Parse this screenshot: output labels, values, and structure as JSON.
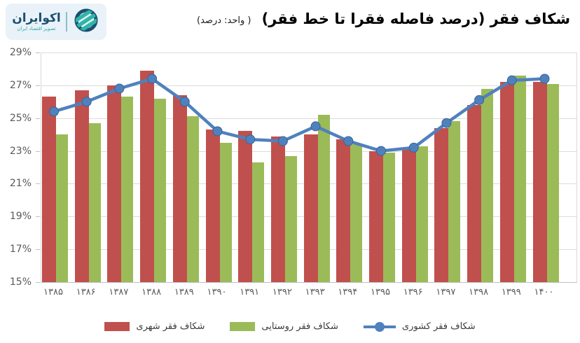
{
  "logo": {
    "brand": "اکوایران",
    "tagline": "تصویر اقتصاد ایران",
    "colors": {
      "navy": "#1C4F70",
      "teal": "#2FB5A9",
      "background": "#E9F2F8"
    }
  },
  "header": {
    "title": "شکاف فقر (درصد فاصله فقرا تا خط فقر)",
    "unit_note": "( واحد: درصد)"
  },
  "chart_data": {
    "type": "bar",
    "subtype": "grouped bars with overlaid line",
    "title": "شکاف فقر (درصد فاصله فقرا تا خط فقر)",
    "unit_label": "( واحد: درصد)",
    "categories": [
      "۱۳۸۵",
      "۱۳۸۶",
      "۱۳۸۷",
      "۱۳۸۸",
      "۱۳۸۹",
      "۱۳۹۰",
      "۱۳۹۱",
      "۱۳۹۲",
      "۱۳۹۳",
      "۱۳۹۴",
      "۱۳۹۵",
      "۱۳۹۶",
      "۱۳۹۷",
      "۱۳۹۸",
      "۱۳۹۹",
      "۱۴۰۰"
    ],
    "categories_latin": [
      1385,
      1386,
      1387,
      1388,
      1389,
      1390,
      1391,
      1392,
      1393,
      1394,
      1395,
      1396,
      1397,
      1398,
      1399,
      1400
    ],
    "series": [
      {
        "name": "شکاف فقر شهری",
        "type": "bar",
        "color": "#C0504D",
        "values": [
          26.3,
          26.7,
          27.0,
          27.9,
          26.4,
          24.3,
          24.2,
          23.9,
          24.0,
          23.7,
          23.0,
          23.2,
          24.4,
          25.8,
          27.2,
          27.2
        ]
      },
      {
        "name": "شکاف فقر روستایی",
        "type": "bar",
        "color": "#9BBB59",
        "values": [
          24.0,
          24.7,
          26.3,
          26.2,
          25.1,
          23.5,
          22.3,
          22.7,
          25.2,
          23.4,
          22.9,
          23.3,
          24.8,
          26.8,
          27.6,
          27.1
        ]
      },
      {
        "name": "شکاف فقر کشوری",
        "type": "line",
        "color": "#4F81BD",
        "values": [
          25.4,
          26.0,
          26.8,
          27.4,
          26.0,
          24.2,
          23.7,
          23.6,
          24.5,
          23.6,
          23.0,
          23.2,
          24.7,
          26.1,
          27.3,
          27.4
        ]
      }
    ],
    "ylim": [
      15,
      29
    ],
    "ytick_step": 2,
    "yticks": [
      "15%",
      "17%",
      "19%",
      "21%",
      "23%",
      "25%",
      "27%",
      "29%"
    ],
    "grid": "horizontal",
    "legend_position": "bottom",
    "axis_text_color": "#595959"
  }
}
